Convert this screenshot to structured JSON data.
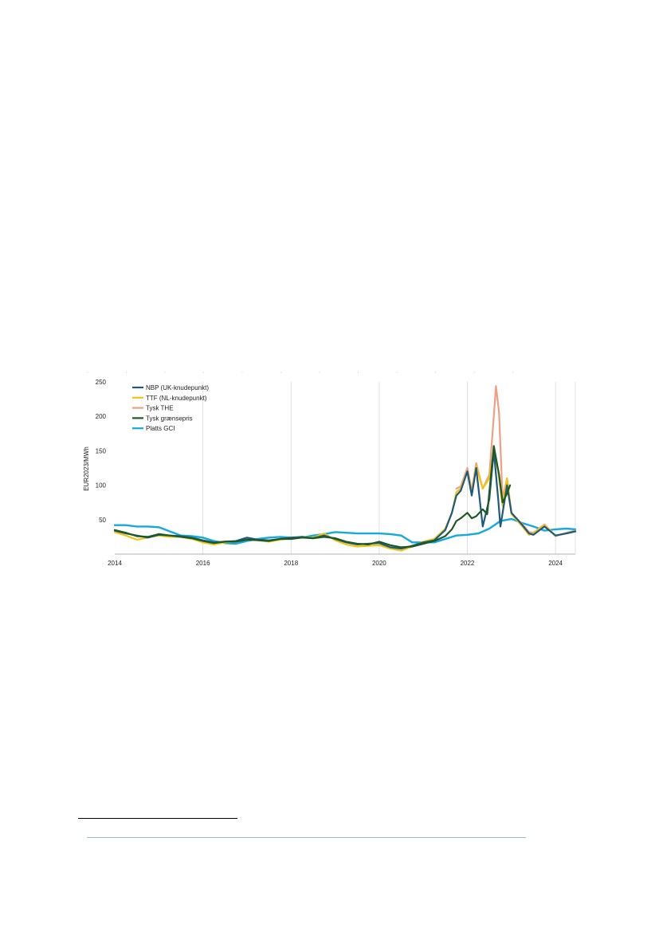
{
  "chart_data": {
    "type": "line",
    "xlabel": "",
    "ylabel": "EUR2023/MWh",
    "xlim": [
      2014,
      2024.45
    ],
    "ylim": [
      0,
      250
    ],
    "x_ticks": [
      2014,
      2016,
      2018,
      2020,
      2022,
      2024
    ],
    "x_tick_labels": [
      "2014",
      "2016",
      "2018",
      "2020",
      "2022",
      "2024"
    ],
    "y_ticks": [
      50,
      100,
      150,
      200,
      250
    ],
    "y_tick_labels": [
      "50",
      "100",
      "150",
      "200",
      "250"
    ],
    "grid": "vertical",
    "legend_position": "top-left",
    "series": [
      {
        "name": "NBP (UK-knudepunkt)",
        "color": "#1f5a7a",
        "points": [
          [
            2014.0,
            34
          ],
          [
            2014.25,
            30
          ],
          [
            2014.5,
            27
          ],
          [
            2014.75,
            24
          ],
          [
            2015.0,
            28
          ],
          [
            2015.25,
            27
          ],
          [
            2015.5,
            26
          ],
          [
            2015.75,
            24
          ],
          [
            2016.0,
            20
          ],
          [
            2016.25,
            17
          ],
          [
            2016.5,
            18
          ],
          [
            2016.75,
            19
          ],
          [
            2017.0,
            24
          ],
          [
            2017.25,
            21
          ],
          [
            2017.5,
            20
          ],
          [
            2017.75,
            22
          ],
          [
            2018.0,
            24
          ],
          [
            2018.25,
            25
          ],
          [
            2018.5,
            23
          ],
          [
            2018.75,
            27
          ],
          [
            2019.0,
            22
          ],
          [
            2019.25,
            17
          ],
          [
            2019.5,
            14
          ],
          [
            2019.75,
            15
          ],
          [
            2020.0,
            16
          ],
          [
            2020.25,
            10
          ],
          [
            2020.5,
            8
          ],
          [
            2020.75,
            12
          ],
          [
            2021.0,
            17
          ],
          [
            2021.25,
            20
          ],
          [
            2021.5,
            35
          ],
          [
            2021.65,
            60
          ],
          [
            2021.75,
            85
          ],
          [
            2021.85,
            92
          ],
          [
            2022.0,
            120
          ],
          [
            2022.1,
            85
          ],
          [
            2022.2,
            125
          ],
          [
            2022.35,
            40
          ],
          [
            2022.5,
            80
          ],
          [
            2022.6,
            150
          ],
          [
            2022.7,
            80
          ],
          [
            2022.75,
            40
          ],
          [
            2022.9,
            100
          ],
          [
            2023.0,
            60
          ],
          [
            2023.25,
            42
          ],
          [
            2023.4,
            30
          ],
          [
            2023.5,
            28
          ],
          [
            2023.75,
            40
          ],
          [
            2024.0,
            27
          ],
          [
            2024.25,
            30
          ],
          [
            2024.45,
            33
          ]
        ]
      },
      {
        "name": "TTF (NL-knudepunkt)",
        "color": "#f2c314",
        "points": [
          [
            2014.0,
            32
          ],
          [
            2014.25,
            27
          ],
          [
            2014.5,
            21
          ],
          [
            2014.75,
            24
          ],
          [
            2015.0,
            27
          ],
          [
            2015.25,
            25
          ],
          [
            2015.5,
            25
          ],
          [
            2015.75,
            22
          ],
          [
            2016.0,
            17
          ],
          [
            2016.25,
            14
          ],
          [
            2016.5,
            17
          ],
          [
            2016.75,
            18
          ],
          [
            2017.0,
            23
          ],
          [
            2017.25,
            20
          ],
          [
            2017.5,
            18
          ],
          [
            2017.75,
            21
          ],
          [
            2018.0,
            23
          ],
          [
            2018.25,
            25
          ],
          [
            2018.5,
            24
          ],
          [
            2018.75,
            30
          ],
          [
            2019.0,
            20
          ],
          [
            2019.25,
            14
          ],
          [
            2019.5,
            11
          ],
          [
            2019.75,
            12
          ],
          [
            2020.0,
            13
          ],
          [
            2020.25,
            8
          ],
          [
            2020.5,
            5
          ],
          [
            2020.75,
            11
          ],
          [
            2021.0,
            18
          ],
          [
            2021.25,
            22
          ],
          [
            2021.5,
            37
          ],
          [
            2021.65,
            60
          ],
          [
            2021.75,
            90
          ],
          [
            2021.85,
            95
          ],
          [
            2022.0,
            120
          ],
          [
            2022.1,
            88
          ],
          [
            2022.2,
            128
          ],
          [
            2022.35,
            95
          ],
          [
            2022.5,
            110
          ],
          [
            2022.6,
            150
          ],
          [
            2022.7,
            120
          ],
          [
            2022.8,
            70
          ],
          [
            2022.9,
            110
          ],
          [
            2023.0,
            58
          ],
          [
            2023.25,
            40
          ],
          [
            2023.4,
            28
          ],
          [
            2023.5,
            30
          ],
          [
            2023.75,
            42
          ],
          [
            2024.0,
            27
          ],
          [
            2024.25,
            30
          ],
          [
            2024.45,
            33
          ]
        ]
      },
      {
        "name": "Tysk THE",
        "color": "#eea084",
        "points": [
          [
            2021.75,
            95
          ],
          [
            2021.85,
            98
          ],
          [
            2022.0,
            125
          ],
          [
            2022.1,
            92
          ],
          [
            2022.2,
            132
          ],
          [
            2022.35,
            95
          ],
          [
            2022.5,
            115
          ],
          [
            2022.6,
            200
          ],
          [
            2022.65,
            244
          ],
          [
            2022.72,
            205
          ],
          [
            2022.8,
            80
          ],
          [
            2022.9,
            110
          ],
          [
            2023.0,
            60
          ],
          [
            2023.25,
            43
          ],
          [
            2023.4,
            32
          ],
          [
            2023.5,
            31
          ],
          [
            2023.75,
            43
          ],
          [
            2024.0,
            26
          ],
          [
            2024.25,
            31
          ],
          [
            2024.45,
            34
          ]
        ]
      },
      {
        "name": "Tysk grænsepris",
        "color": "#1d5a23",
        "points": [
          [
            2014.0,
            35
          ],
          [
            2014.25,
            31
          ],
          [
            2014.5,
            26
          ],
          [
            2014.75,
            25
          ],
          [
            2015.0,
            29
          ],
          [
            2015.25,
            27
          ],
          [
            2015.5,
            25
          ],
          [
            2015.75,
            23
          ],
          [
            2016.0,
            19
          ],
          [
            2016.25,
            16
          ],
          [
            2016.5,
            18
          ],
          [
            2016.75,
            18
          ],
          [
            2017.0,
            21
          ],
          [
            2017.25,
            20
          ],
          [
            2017.5,
            19
          ],
          [
            2017.75,
            22
          ],
          [
            2018.0,
            22
          ],
          [
            2018.25,
            24
          ],
          [
            2018.5,
            23
          ],
          [
            2018.75,
            25
          ],
          [
            2019.0,
            23
          ],
          [
            2019.25,
            18
          ],
          [
            2019.5,
            15
          ],
          [
            2019.75,
            14
          ],
          [
            2020.0,
            18
          ],
          [
            2020.25,
            13
          ],
          [
            2020.5,
            10
          ],
          [
            2020.75,
            11
          ],
          [
            2021.0,
            15
          ],
          [
            2021.25,
            19
          ],
          [
            2021.5,
            26
          ],
          [
            2021.65,
            36
          ],
          [
            2021.75,
            48
          ],
          [
            2021.85,
            52
          ],
          [
            2022.0,
            60
          ],
          [
            2022.1,
            52
          ],
          [
            2022.2,
            55
          ],
          [
            2022.35,
            65
          ],
          [
            2022.45,
            58
          ],
          [
            2022.6,
            157
          ],
          [
            2022.72,
            115
          ],
          [
            2022.8,
            75
          ],
          [
            2022.9,
            88
          ],
          [
            2022.97,
            100
          ]
        ]
      },
      {
        "name": "Platts GCI",
        "color": "#17a8e0",
        "points": [
          [
            2014.0,
            42
          ],
          [
            2014.25,
            42
          ],
          [
            2014.5,
            40
          ],
          [
            2014.75,
            40
          ],
          [
            2015.0,
            39
          ],
          [
            2015.25,
            33
          ],
          [
            2015.5,
            27
          ],
          [
            2015.75,
            26
          ],
          [
            2016.0,
            24
          ],
          [
            2016.25,
            19
          ],
          [
            2016.5,
            16
          ],
          [
            2016.75,
            15
          ],
          [
            2017.0,
            19
          ],
          [
            2017.25,
            22
          ],
          [
            2017.5,
            24
          ],
          [
            2017.75,
            25
          ],
          [
            2018.0,
            24
          ],
          [
            2018.25,
            24
          ],
          [
            2018.5,
            27
          ],
          [
            2018.75,
            29
          ],
          [
            2019.0,
            32
          ],
          [
            2019.25,
            31
          ],
          [
            2019.5,
            30
          ],
          [
            2019.75,
            30
          ],
          [
            2020.0,
            30
          ],
          [
            2020.25,
            29
          ],
          [
            2020.5,
            27
          ],
          [
            2020.75,
            17
          ],
          [
            2021.0,
            17
          ],
          [
            2021.25,
            17
          ],
          [
            2021.5,
            22
          ],
          [
            2021.75,
            27
          ],
          [
            2022.0,
            28
          ],
          [
            2022.25,
            30
          ],
          [
            2022.5,
            37
          ],
          [
            2022.75,
            48
          ],
          [
            2023.0,
            51
          ],
          [
            2023.25,
            45
          ],
          [
            2023.5,
            40
          ],
          [
            2023.75,
            34
          ],
          [
            2024.0,
            36
          ],
          [
            2024.25,
            37
          ],
          [
            2024.45,
            36
          ]
        ]
      }
    ]
  }
}
